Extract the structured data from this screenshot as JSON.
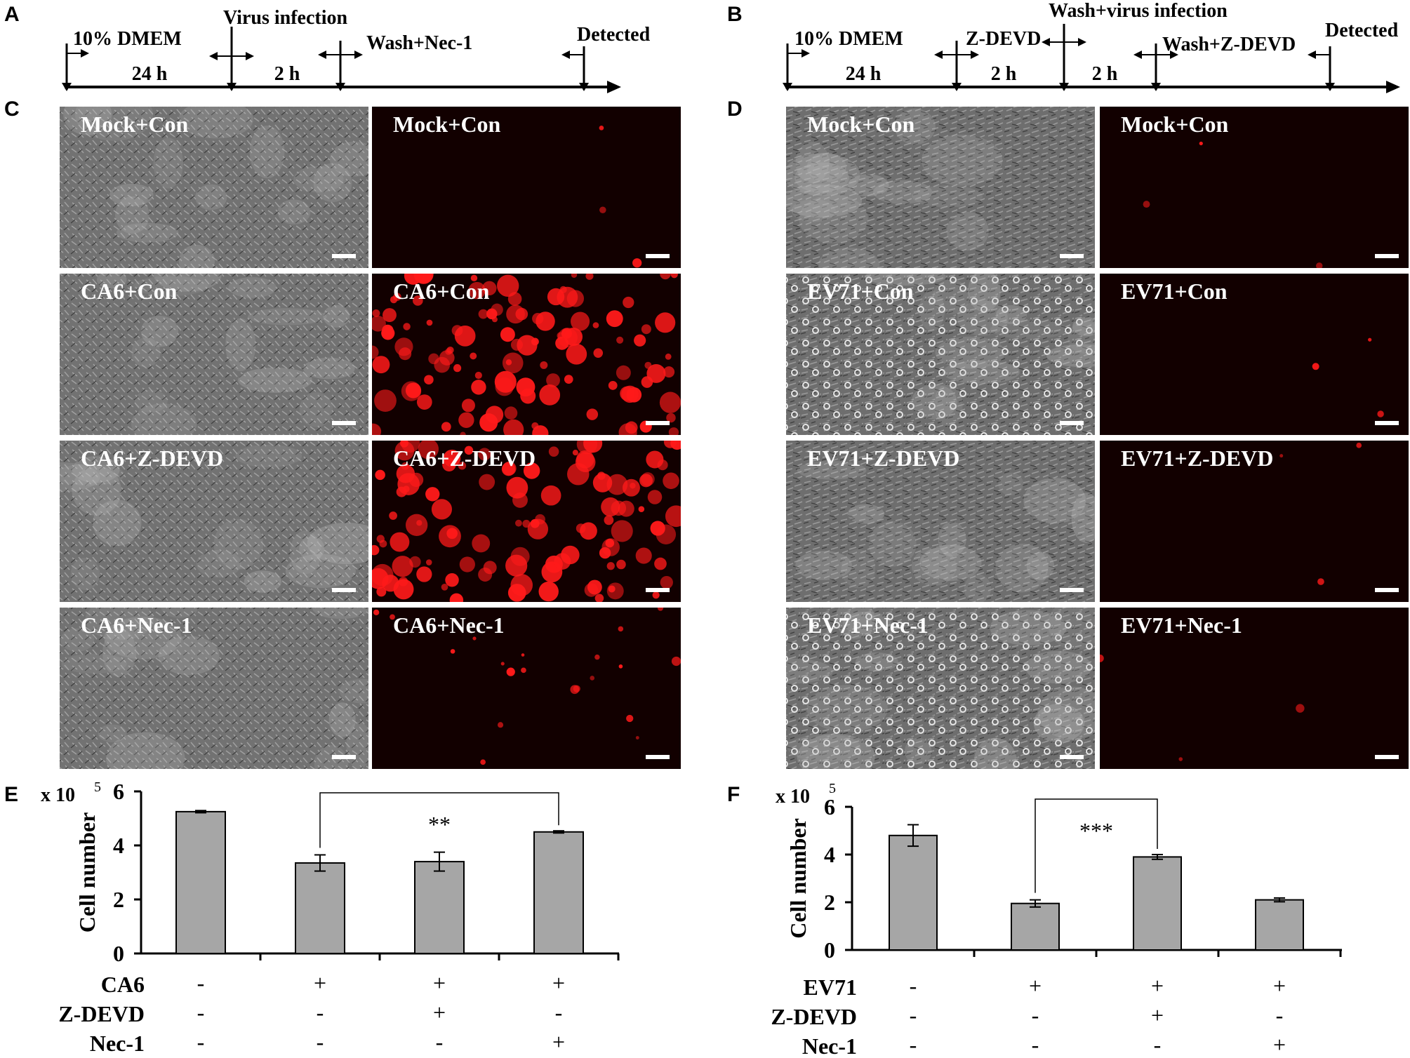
{
  "figure": {
    "panel_letters": [
      "A",
      "B",
      "C",
      "D",
      "E",
      "F"
    ],
    "timeline_a": {
      "labels": [
        "10% DMEM",
        "Virus infection",
        "Wash+Nec-1",
        "Detected"
      ],
      "durations": [
        "24 h",
        "2 h"
      ]
    },
    "timeline_b": {
      "labels": [
        "10% DMEM",
        "Z-DEVD",
        "Wash+virus infection",
        "Wash+Z-DEVD",
        "Detected"
      ],
      "durations": [
        "24 h",
        "2 h",
        "2 h"
      ]
    },
    "panel_c_labels": [
      [
        "Mock+Con",
        "Mock+Con"
      ],
      [
        "CA6+Con",
        "CA6+Con"
      ],
      [
        "CA6+Z-DEVD",
        "CA6+Z-DEVD"
      ],
      [
        "CA6+Nec-1",
        "CA6+Nec-1"
      ]
    ],
    "panel_d_labels": [
      [
        "Mock+Con",
        "Mock+Con"
      ],
      [
        "EV71+Con",
        "EV71+Con"
      ],
      [
        "EV71+Z-DEVD",
        "EV71+Z-DEVD"
      ],
      [
        "EV71+Nec-1",
        "EV71+Nec-1"
      ]
    ],
    "colors": {
      "phase_contrast": "#6e6e6e",
      "fluorescence_bg": "#120000",
      "fluorescence_cells": "#ff1a1a",
      "bar_fill": "#a6a6a6"
    }
  },
  "chart_data": [
    {
      "type": "bar",
      "panel": "E",
      "ylabel": "Cell number",
      "multiplier": "x 10",
      "multiplier_exp": "5",
      "ylim": [
        0,
        6
      ],
      "yticks": [
        "0",
        "2",
        "4",
        "6"
      ],
      "values": [
        5.25,
        3.35,
        3.4,
        4.5
      ],
      "errors": [
        0.04,
        0.3,
        0.35,
        0.04
      ],
      "significance": {
        "from": 1,
        "to": 3,
        "label": "**"
      },
      "conditions": [
        {
          "name": "CA6",
          "signs": [
            "-",
            "+",
            "+",
            "+"
          ]
        },
        {
          "name": "Z-DEVD",
          "signs": [
            "-",
            "-",
            "+",
            "-"
          ]
        },
        {
          "name": "Nec-1",
          "signs": [
            "-",
            "-",
            "-",
            "+"
          ]
        }
      ]
    },
    {
      "type": "bar",
      "panel": "F",
      "ylabel": "Cell number",
      "multiplier": "x 10",
      "multiplier_exp": "5",
      "ylim": [
        0,
        6
      ],
      "yticks": [
        "0",
        "2",
        "4",
        "6"
      ],
      "values": [
        4.8,
        1.95,
        3.9,
        2.1
      ],
      "errors": [
        0.45,
        0.15,
        0.1,
        0.08
      ],
      "significance": {
        "from": 1,
        "to": 2,
        "label": "***"
      },
      "conditions": [
        {
          "name": "EV71",
          "signs": [
            "-",
            "+",
            "+",
            "+"
          ]
        },
        {
          "name": "Z-DEVD",
          "signs": [
            "-",
            "-",
            "+",
            "-"
          ]
        },
        {
          "name": "Nec-1",
          "signs": [
            "-",
            "-",
            "-",
            "+"
          ]
        }
      ]
    }
  ]
}
